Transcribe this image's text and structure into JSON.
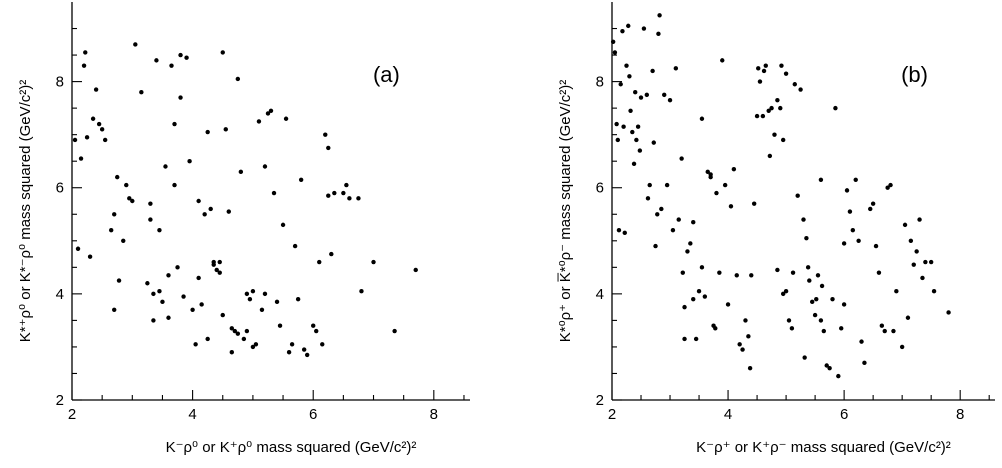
{
  "chart_data": [
    {
      "type": "scatter",
      "panel_label": "(a)",
      "xlabel": "K⁻ρ⁰ or K⁺ρ⁰ mass squared (GeV/c²)²",
      "ylabel": "K*⁺ρ⁰ or K*⁻ρ⁰ mass squared (GeV/c²)²",
      "xlim": [
        2,
        8.6
      ],
      "ylim": [
        2,
        9.5
      ],
      "x_ticks": [
        2,
        4,
        6,
        8
      ],
      "y_ticks": [
        2,
        4,
        6,
        8
      ],
      "grid": false,
      "points": [
        [
          2.05,
          6.9
        ],
        [
          2.1,
          4.85
        ],
        [
          2.15,
          6.55
        ],
        [
          2.2,
          8.3
        ],
        [
          2.22,
          8.55
        ],
        [
          2.25,
          6.95
        ],
        [
          2.3,
          4.7
        ],
        [
          2.35,
          7.3
        ],
        [
          2.4,
          7.85
        ],
        [
          2.45,
          7.2
        ],
        [
          2.5,
          7.1
        ],
        [
          2.55,
          6.9
        ],
        [
          2.65,
          5.2
        ],
        [
          2.7,
          5.5
        ],
        [
          2.75,
          6.2
        ],
        [
          2.78,
          4.25
        ],
        [
          2.7,
          3.7
        ],
        [
          2.85,
          5.0
        ],
        [
          2.9,
          6.05
        ],
        [
          2.95,
          5.8
        ],
        [
          3.0,
          5.75
        ],
        [
          3.05,
          8.7
        ],
        [
          3.15,
          7.8
        ],
        [
          3.25,
          4.2
        ],
        [
          3.3,
          5.4
        ],
        [
          3.35,
          4.0
        ],
        [
          3.35,
          3.5
        ],
        [
          3.4,
          8.4
        ],
        [
          3.45,
          5.2
        ],
        [
          3.45,
          4.05
        ],
        [
          3.5,
          3.85
        ],
        [
          3.55,
          6.4
        ],
        [
          3.6,
          3.55
        ],
        [
          3.65,
          8.3
        ],
        [
          3.7,
          6.05
        ],
        [
          3.7,
          7.2
        ],
        [
          3.75,
          4.5
        ],
        [
          3.8,
          8.5
        ],
        [
          3.8,
          7.7
        ],
        [
          3.85,
          3.95
        ],
        [
          3.9,
          8.45
        ],
        [
          3.95,
          6.5
        ],
        [
          4.0,
          3.7
        ],
        [
          4.05,
          3.05
        ],
        [
          4.1,
          4.3
        ],
        [
          4.15,
          3.8
        ],
        [
          4.2,
          5.5
        ],
        [
          4.25,
          7.05
        ],
        [
          4.25,
          3.15
        ],
        [
          4.3,
          5.6
        ],
        [
          4.35,
          4.6
        ],
        [
          4.35,
          4.55
        ],
        [
          4.4,
          4.45
        ],
        [
          4.45,
          4.6
        ],
        [
          4.45,
          4.4
        ],
        [
          4.5,
          8.55
        ],
        [
          4.5,
          3.6
        ],
        [
          4.55,
          7.1
        ],
        [
          4.6,
          5.55
        ],
        [
          4.65,
          3.35
        ],
        [
          4.65,
          2.9
        ],
        [
          4.7,
          3.3
        ],
        [
          4.75,
          8.05
        ],
        [
          4.75,
          3.25
        ],
        [
          4.8,
          6.3
        ],
        [
          4.85,
          3.15
        ],
        [
          4.9,
          3.3
        ],
        [
          4.95,
          3.9
        ],
        [
          5.0,
          3.0
        ],
        [
          5.0,
          4.05
        ],
        [
          5.05,
          3.05
        ],
        [
          5.1,
          7.25
        ],
        [
          5.15,
          3.7
        ],
        [
          5.2,
          6.4
        ],
        [
          5.2,
          4.0
        ],
        [
          5.25,
          7.4
        ],
        [
          5.3,
          7.45
        ],
        [
          5.35,
          5.9
        ],
        [
          5.4,
          3.85
        ],
        [
          5.45,
          3.4
        ],
        [
          5.5,
          5.3
        ],
        [
          5.55,
          7.3
        ],
        [
          5.6,
          2.9
        ],
        [
          5.65,
          3.05
        ],
        [
          5.7,
          4.9
        ],
        [
          5.75,
          3.9
        ],
        [
          5.8,
          6.15
        ],
        [
          5.85,
          2.95
        ],
        [
          5.9,
          2.85
        ],
        [
          6.0,
          3.4
        ],
        [
          6.05,
          3.3
        ],
        [
          6.1,
          4.6
        ],
        [
          6.15,
          3.05
        ],
        [
          6.2,
          7.0
        ],
        [
          6.25,
          6.75
        ],
        [
          6.25,
          5.85
        ],
        [
          6.3,
          4.75
        ],
        [
          6.35,
          5.9
        ],
        [
          6.5,
          5.9
        ],
        [
          6.55,
          6.05
        ],
        [
          6.6,
          5.8
        ],
        [
          6.75,
          5.8
        ],
        [
          6.8,
          4.05
        ],
        [
          7.0,
          4.6
        ],
        [
          7.35,
          3.3
        ],
        [
          7.7,
          4.45
        ],
        [
          3.6,
          4.35
        ],
        [
          4.9,
          4.0
        ],
        [
          4.1,
          5.75
        ],
        [
          3.3,
          5.7
        ]
      ]
    },
    {
      "type": "scatter",
      "panel_label": "(b)",
      "xlabel": "K⁻ρ⁺ or K⁺ρ⁻ mass squared (GeV/c²)²",
      "ylabel": "K*⁰ρ⁺ or K̅*⁰ρ⁻ mass squared (GeV/c²)²",
      "xlim": [
        2,
        8.6
      ],
      "ylim": [
        2,
        9.5
      ],
      "x_ticks": [
        2,
        4,
        6,
        8
      ],
      "y_ticks": [
        2,
        4,
        6,
        8
      ],
      "grid": false,
      "points": [
        [
          2.02,
          8.75
        ],
        [
          2.05,
          8.55
        ],
        [
          2.08,
          7.2
        ],
        [
          2.1,
          6.9
        ],
        [
          2.12,
          5.2
        ],
        [
          2.15,
          7.95
        ],
        [
          2.18,
          8.95
        ],
        [
          2.2,
          7.15
        ],
        [
          2.22,
          5.15
        ],
        [
          2.25,
          8.3
        ],
        [
          2.28,
          9.05
        ],
        [
          2.3,
          8.1
        ],
        [
          2.32,
          7.45
        ],
        [
          2.35,
          7.05
        ],
        [
          2.38,
          6.45
        ],
        [
          2.4,
          7.8
        ],
        [
          2.42,
          6.9
        ],
        [
          2.45,
          7.15
        ],
        [
          2.48,
          6.7
        ],
        [
          2.5,
          7.7
        ],
        [
          2.55,
          9.0
        ],
        [
          2.6,
          7.75
        ],
        [
          2.62,
          5.8
        ],
        [
          2.65,
          6.05
        ],
        [
          2.7,
          8.2
        ],
        [
          2.72,
          6.85
        ],
        [
          2.75,
          4.9
        ],
        [
          2.78,
          5.5
        ],
        [
          2.8,
          8.9
        ],
        [
          2.82,
          9.25
        ],
        [
          2.85,
          5.6
        ],
        [
          2.9,
          7.75
        ],
        [
          2.95,
          6.05
        ],
        [
          3.0,
          7.65
        ],
        [
          3.05,
          5.2
        ],
        [
          3.1,
          8.25
        ],
        [
          3.15,
          5.4
        ],
        [
          3.2,
          6.55
        ],
        [
          3.22,
          4.4
        ],
        [
          3.25,
          3.15
        ],
        [
          3.3,
          4.8
        ],
        [
          3.35,
          4.95
        ],
        [
          3.4,
          5.35
        ],
        [
          3.45,
          3.15
        ],
        [
          3.5,
          4.05
        ],
        [
          3.55,
          4.5
        ],
        [
          3.6,
          3.95
        ],
        [
          3.65,
          6.3
        ],
        [
          3.7,
          6.25
        ],
        [
          3.75,
          3.4
        ],
        [
          3.78,
          3.35
        ],
        [
          3.8,
          5.9
        ],
        [
          3.85,
          4.4
        ],
        [
          3.9,
          8.4
        ],
        [
          3.95,
          6.05
        ],
        [
          4.0,
          3.8
        ],
        [
          4.05,
          5.65
        ],
        [
          4.1,
          6.35
        ],
        [
          4.15,
          4.35
        ],
        [
          4.2,
          3.05
        ],
        [
          4.25,
          2.95
        ],
        [
          4.3,
          3.5
        ],
        [
          4.35,
          3.2
        ],
        [
          4.38,
          2.6
        ],
        [
          4.4,
          4.35
        ],
        [
          4.45,
          5.7
        ],
        [
          4.5,
          7.35
        ],
        [
          4.52,
          8.25
        ],
        [
          4.55,
          8.0
        ],
        [
          4.6,
          7.35
        ],
        [
          4.62,
          8.2
        ],
        [
          4.65,
          8.3
        ],
        [
          4.7,
          7.45
        ],
        [
          4.72,
          6.6
        ],
        [
          4.75,
          7.5
        ],
        [
          4.8,
          7.0
        ],
        [
          4.85,
          7.65
        ],
        [
          4.9,
          7.5
        ],
        [
          4.92,
          8.3
        ],
        [
          4.95,
          6.9
        ],
        [
          5.0,
          8.15
        ],
        [
          5.05,
          3.5
        ],
        [
          5.1,
          3.35
        ],
        [
          5.12,
          4.4
        ],
        [
          5.15,
          7.95
        ],
        [
          5.2,
          5.85
        ],
        [
          5.25,
          7.85
        ],
        [
          5.3,
          5.4
        ],
        [
          5.32,
          2.8
        ],
        [
          5.35,
          5.05
        ],
        [
          5.38,
          4.5
        ],
        [
          5.4,
          4.25
        ],
        [
          5.45,
          3.85
        ],
        [
          5.5,
          3.6
        ],
        [
          5.52,
          3.9
        ],
        [
          5.55,
          4.35
        ],
        [
          5.6,
          3.5
        ],
        [
          5.62,
          4.15
        ],
        [
          5.65,
          3.3
        ],
        [
          5.7,
          2.65
        ],
        [
          5.75,
          2.6
        ],
        [
          5.8,
          3.9
        ],
        [
          5.85,
          7.5
        ],
        [
          5.9,
          2.45
        ],
        [
          5.95,
          3.35
        ],
        [
          6.0,
          3.8
        ],
        [
          6.05,
          5.95
        ],
        [
          6.1,
          5.55
        ],
        [
          6.15,
          5.2
        ],
        [
          6.2,
          6.15
        ],
        [
          6.25,
          5.0
        ],
        [
          6.3,
          3.1
        ],
        [
          6.35,
          2.7
        ],
        [
          6.45,
          5.6
        ],
        [
          6.5,
          5.7
        ],
        [
          6.55,
          4.9
        ],
        [
          6.6,
          4.4
        ],
        [
          6.65,
          3.4
        ],
        [
          6.7,
          3.3
        ],
        [
          6.75,
          6.0
        ],
        [
          6.8,
          6.05
        ],
        [
          6.85,
          3.3
        ],
        [
          6.9,
          4.05
        ],
        [
          7.0,
          3.0
        ],
        [
          7.05,
          5.3
        ],
        [
          7.1,
          3.55
        ],
        [
          7.15,
          5.0
        ],
        [
          7.2,
          4.55
        ],
        [
          7.25,
          4.8
        ],
        [
          7.3,
          5.4
        ],
        [
          7.35,
          4.3
        ],
        [
          7.4,
          4.6
        ],
        [
          7.5,
          4.6
        ],
        [
          7.55,
          4.05
        ],
        [
          7.8,
          3.65
        ],
        [
          3.55,
          7.3
        ],
        [
          4.95,
          4.0
        ],
        [
          5.6,
          6.15
        ],
        [
          6.0,
          4.95
        ],
        [
          5.0,
          4.05
        ],
        [
          3.7,
          6.2
        ],
        [
          4.85,
          4.45
        ],
        [
          3.25,
          3.75
        ],
        [
          3.4,
          3.9
        ]
      ]
    }
  ]
}
